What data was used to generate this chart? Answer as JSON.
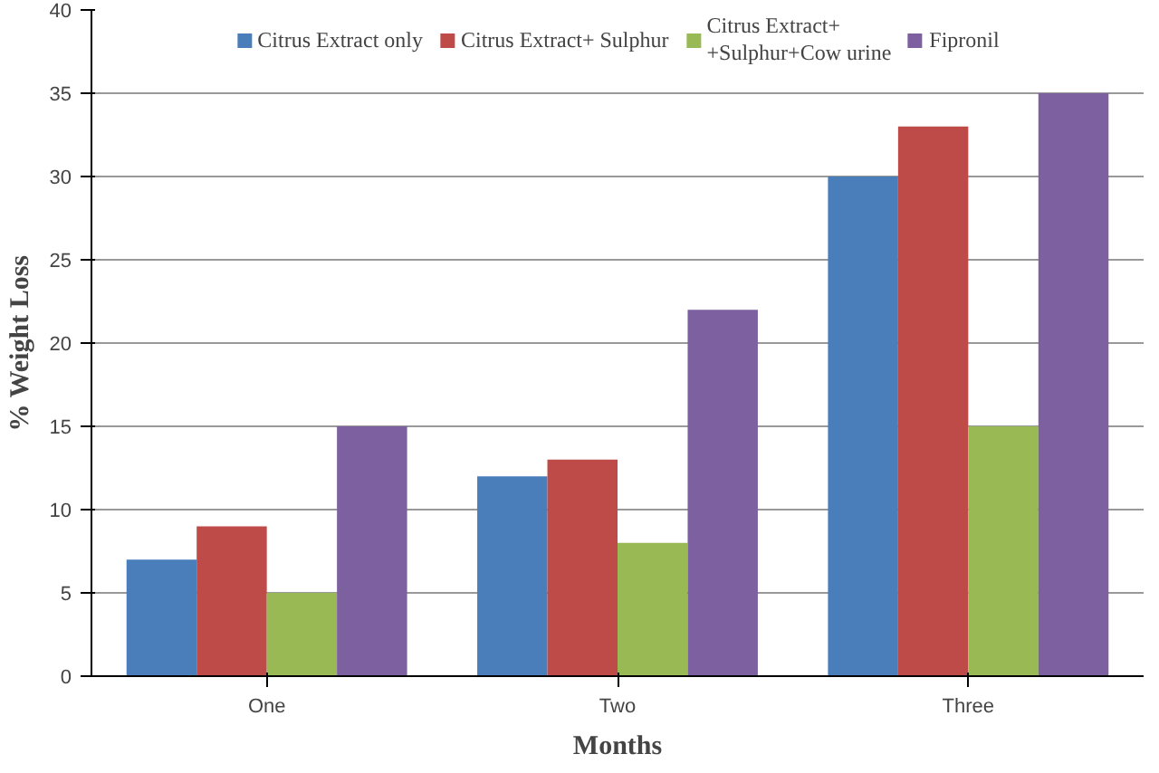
{
  "chart_data": {
    "type": "bar",
    "xlabel": "Months",
    "ylabel": "% Weight Loss",
    "categories": [
      "One",
      "Two",
      "Three"
    ],
    "series": [
      {
        "name": "Citrus Extract only",
        "color": "#4a7ebb",
        "values": [
          7,
          12,
          30
        ]
      },
      {
        "name": "Citrus Extract+ Sulphur",
        "color": "#be4b48",
        "values": [
          9,
          13,
          33
        ]
      },
      {
        "name": "Citrus Extract+\n+Sulphur+Cow urine",
        "color": "#98b954",
        "values": [
          5,
          8,
          15
        ]
      },
      {
        "name": "Fipronil",
        "color": "#7d60a0",
        "values": [
          15,
          22,
          35
        ]
      }
    ],
    "ylim": [
      0,
      40
    ],
    "yticks": [
      0,
      5,
      10,
      15,
      20,
      25,
      30,
      35,
      40
    ],
    "grid": "y",
    "legend": "top"
  }
}
